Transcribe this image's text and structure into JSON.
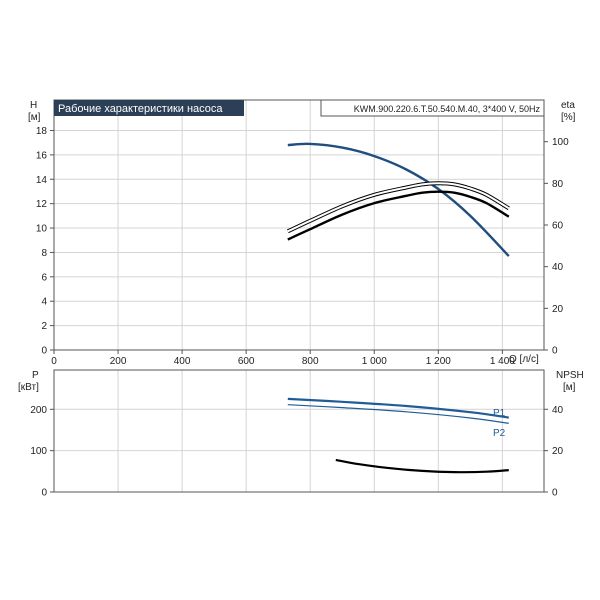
{
  "title": "Рабочие характеристики насоса",
  "model": "KWM.900.220.6.T.50.540.M.40, 3*400 V, 50Hz",
  "colors": {
    "title_bg": "#2b3f56",
    "title_text": "#ffffff",
    "head_curve": "#1f4e7f",
    "eta_curve": "#000000",
    "power_curve": "#1f5c99",
    "npsh_curve": "#000000",
    "grid": "#d4d4d4",
    "frame": "#555555"
  },
  "top": {
    "y_left_label": "H",
    "y_left_unit": "[м]",
    "y_right_label": "eta",
    "y_right_unit": "[%]",
    "x_label": "Q [л/с]",
    "x_ticks": [
      "0",
      "200",
      "400",
      "600",
      "800",
      "1 000",
      "1 200",
      "1 400"
    ],
    "y_left_ticks": [
      "0",
      "2",
      "4",
      "6",
      "8",
      "10",
      "12",
      "14",
      "16",
      "18"
    ],
    "y_right_ticks": [
      "0",
      "20",
      "40",
      "60",
      "80",
      "100"
    ]
  },
  "bottom": {
    "y_left_label": "P",
    "y_left_unit": "[кВт]",
    "y_right_label": "NPSH",
    "y_right_unit": "[м]",
    "y_left_ticks": [
      "0",
      "100",
      "200"
    ],
    "y_right_ticks": [
      "0",
      "20",
      "40"
    ],
    "series_labels": [
      "P1",
      "P2"
    ]
  },
  "chart_data": [
    {
      "type": "line",
      "title": "Рабочие характеристики насоса",
      "xlabel": "Q [л/с]",
      "ylabel": "H [м]",
      "y2label": "eta [%]",
      "xlim": [
        0,
        1530
      ],
      "ylim": [
        0,
        20.5
      ],
      "y2lim": [
        0,
        120
      ],
      "grid": true,
      "series": [
        {
          "axis": "left",
          "x": [
            730,
            800,
            900,
            1000,
            1100,
            1200,
            1300,
            1420
          ],
          "values": [
            16.8,
            16.9,
            16.6,
            15.9,
            14.8,
            13.2,
            11.0,
            7.7
          ]
        },
        {
          "axis": "right",
          "x": [
            730,
            800,
            900,
            1000,
            1100,
            1150,
            1200,
            1250,
            1300,
            1350,
            1420
          ],
          "values": [
            57,
            62,
            69,
            74.5,
            78,
            79.5,
            80,
            79.5,
            77.5,
            74.5,
            68
          ]
        },
        {
          "axis": "right",
          "x": [
            730,
            800,
            900,
            1000,
            1100,
            1150,
            1200,
            1250,
            1300,
            1350,
            1420
          ],
          "values": [
            53,
            58,
            65,
            70.5,
            74,
            75.5,
            76,
            75.5,
            73.5,
            70.5,
            64
          ]
        }
      ]
    },
    {
      "type": "line",
      "ylabel": "P [кВт]",
      "y2label": "NPSH [м]",
      "xlim": [
        0,
        1530
      ],
      "ylim": [
        0,
        295
      ],
      "y2lim": [
        0,
        59
      ],
      "grid": true,
      "series": [
        {
          "name": "P1",
          "axis": "left",
          "x": [
            730,
            900,
            1100,
            1300,
            1420
          ],
          "values": [
            225,
            218,
            208,
            193,
            180
          ]
        },
        {
          "name": "P2",
          "axis": "left",
          "x": [
            730,
            900,
            1100,
            1300,
            1420
          ],
          "values": [
            211,
            204,
            194,
            179,
            166
          ]
        },
        {
          "axis": "right",
          "x": [
            880,
            950,
            1050,
            1150,
            1250,
            1350,
            1420
          ],
          "values": [
            15.5,
            13.5,
            11.5,
            10.2,
            9.6,
            9.8,
            10.6
          ]
        }
      ]
    }
  ]
}
